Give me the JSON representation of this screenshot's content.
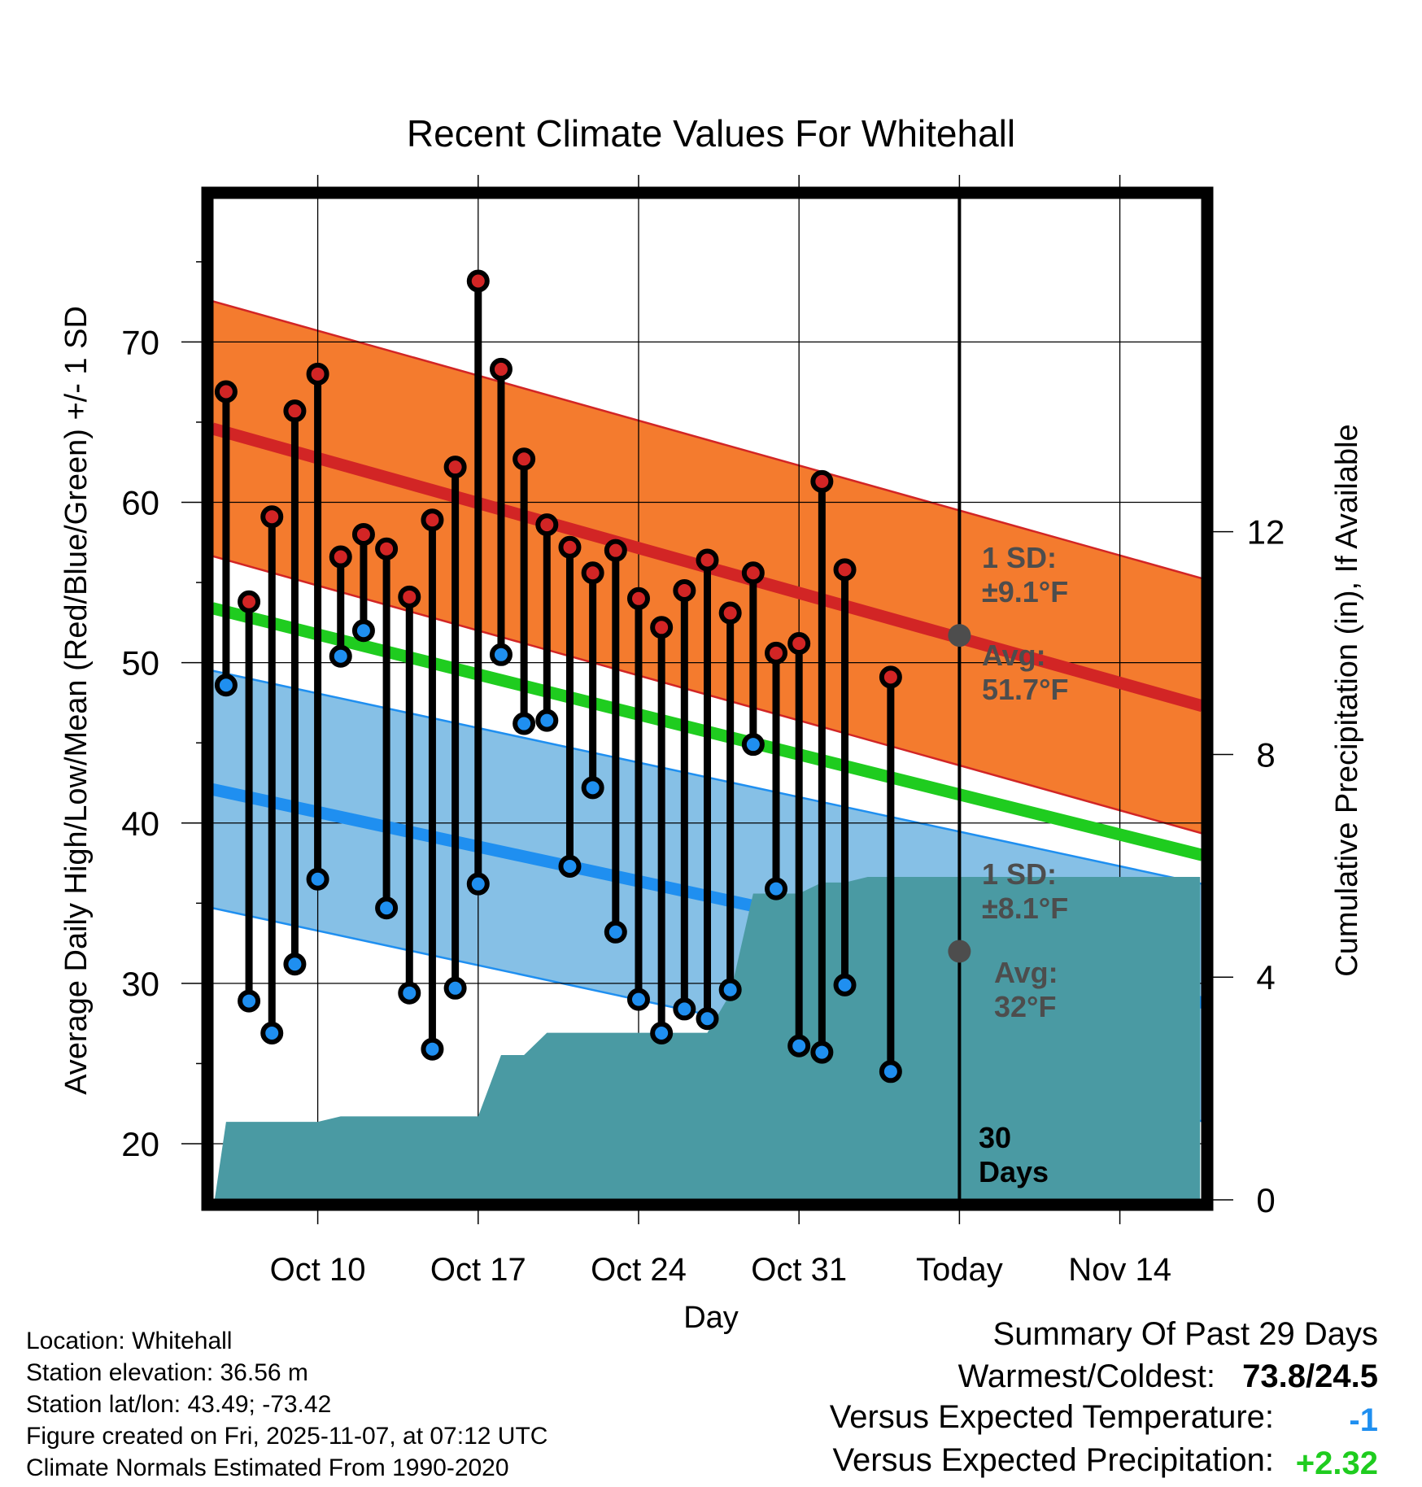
{
  "chart_data": {
    "type": "line",
    "title": "Recent Climate Values For Whitehall",
    "xlabel": "Day",
    "ylabel_left": "Average Daily High/Low/Mean (Red/Blue/Green) +/- 1 SD",
    "ylabel_right": "Cumulative Precipitation (in), If Available",
    "y_left_range": [
      16.5,
      79
    ],
    "y_left_ticks": [
      20,
      30,
      40,
      50,
      60,
      70
    ],
    "y_right_range": [
      0,
      18
    ],
    "y_right_ticks": [
      0,
      4,
      8,
      12
    ],
    "x_range": [
      -1.6,
      41.6
    ],
    "x_ticks": [
      {
        "day": 3,
        "label": "Oct 10"
      },
      {
        "day": 10,
        "label": "Oct 17"
      },
      {
        "day": 17,
        "label": "Oct 24"
      },
      {
        "day": 24,
        "label": "Oct 31"
      },
      {
        "day": 31,
        "label": "Today"
      },
      {
        "day": 38,
        "label": "Nov 14"
      }
    ],
    "today_day": 31,
    "normals": {
      "high_avg": [
        64.6,
        47.3
      ],
      "high_sd": 7.95,
      "low_avg": [
        42.1,
        28.8
      ],
      "low_sd": 7.4,
      "mean_avg": [
        53.4,
        38.0
      ]
    },
    "daily": [
      {
        "day": -1,
        "high": 66.9,
        "low": 48.6
      },
      {
        "day": 0,
        "high": 53.8,
        "low": 28.9
      },
      {
        "day": 1,
        "high": 59.1,
        "low": 26.9
      },
      {
        "day": 2,
        "high": 65.7,
        "low": 31.2
      },
      {
        "day": 3,
        "high": 68.0,
        "low": 36.5
      },
      {
        "day": 4,
        "high": 56.6,
        "low": 50.4
      },
      {
        "day": 5,
        "high": 58.0,
        "low": 52.0
      },
      {
        "day": 6,
        "high": 57.1,
        "low": 34.7
      },
      {
        "day": 7,
        "high": 54.1,
        "low": 29.4
      },
      {
        "day": 8,
        "high": 58.9,
        "low": 25.9
      },
      {
        "day": 9,
        "high": 62.2,
        "low": 29.7
      },
      {
        "day": 10,
        "high": 73.8,
        "low": 36.2
      },
      {
        "day": 11,
        "high": 68.3,
        "low": 50.5
      },
      {
        "day": 12,
        "high": 62.7,
        "low": 46.2
      },
      {
        "day": 13,
        "high": 58.6,
        "low": 46.4
      },
      {
        "day": 14,
        "high": 57.2,
        "low": 37.3
      },
      {
        "day": 15,
        "high": 55.6,
        "low": 42.2
      },
      {
        "day": 16,
        "high": 57.0,
        "low": 33.2
      },
      {
        "day": 17,
        "high": 54.0,
        "low": 29.0
      },
      {
        "day": 18,
        "high": 52.2,
        "low": 26.9
      },
      {
        "day": 19,
        "high": 54.5,
        "low": 28.4
      },
      {
        "day": 20,
        "high": 56.4,
        "low": 27.8
      },
      {
        "day": 21,
        "high": 53.1,
        "low": 29.6
      },
      {
        "day": 22,
        "high": 55.6,
        "low": 44.9
      },
      {
        "day": 23,
        "high": 50.6,
        "low": 35.9
      },
      {
        "day": 24,
        "high": 51.2,
        "low": 26.1
      },
      {
        "day": 25,
        "high": 61.3,
        "low": 25.7
      },
      {
        "day": 26,
        "high": 55.8,
        "low": 29.9
      },
      {
        "day": 28,
        "high": 49.1,
        "low": 24.5
      }
    ],
    "precip_cumulative": [
      {
        "day": -1.5,
        "value": 0.0
      },
      {
        "day": -1,
        "value": 1.4
      },
      {
        "day": 3,
        "value": 1.4
      },
      {
        "day": 4,
        "value": 1.5
      },
      {
        "day": 9,
        "value": 1.5
      },
      {
        "day": 10,
        "value": 1.5
      },
      {
        "day": 11,
        "value": 2.6
      },
      {
        "day": 12,
        "value": 2.6
      },
      {
        "day": 13,
        "value": 3.0
      },
      {
        "day": 20,
        "value": 3.0
      },
      {
        "day": 21,
        "value": 3.7
      },
      {
        "day": 22,
        "value": 5.5
      },
      {
        "day": 24,
        "value": 5.5
      },
      {
        "day": 25,
        "value": 5.7
      },
      {
        "day": 26,
        "value": 5.7
      },
      {
        "day": 27,
        "value": 5.8
      },
      {
        "day": 41.5,
        "value": 5.8
      }
    ],
    "annotations": {
      "high_sd_label": "1 SD:",
      "high_sd_value": "±9.1°F",
      "high_avg_label": "Avg:",
      "high_avg_value": "51.7°F",
      "high_avg_point": 51.7,
      "low_sd_label": "1 SD:",
      "low_sd_value": "±8.1°F",
      "low_avg_label": "Avg:",
      "low_avg_value": "32°F",
      "low_avg_point": 32,
      "days_count": "30",
      "days_label": "Days"
    }
  },
  "info": {
    "location": "Location: Whitehall",
    "elevation": "Station elevation: 36.56 m",
    "latlon": "Station lat/lon: 43.49; -73.42",
    "created": "Figure created on Fri, 2025-11-07, at 07:12 UTC",
    "normals": "Climate Normals Estimated From 1990-2020"
  },
  "summary": {
    "title": "Summary Of Past 29 Days",
    "warmest_label": "Warmest/Coldest:",
    "warmest_value": "73.8/24.5",
    "temp_label": "Versus Expected Temperature:",
    "temp_value": "-1",
    "precip_label": "Versus Expected Precipitation:",
    "precip_value": "+2.32"
  },
  "colors": {
    "high_band": "#f47b2e",
    "high_line": "#d22525",
    "low_band": "#86c0e6",
    "low_line": "#1f8ff0",
    "mean_line": "#1fcc1f",
    "precip": "#4a9aa3",
    "temp_delta": "#1f8ff0",
    "precip_delta": "#1fcc1f",
    "annotation": "#4d4d4d"
  }
}
